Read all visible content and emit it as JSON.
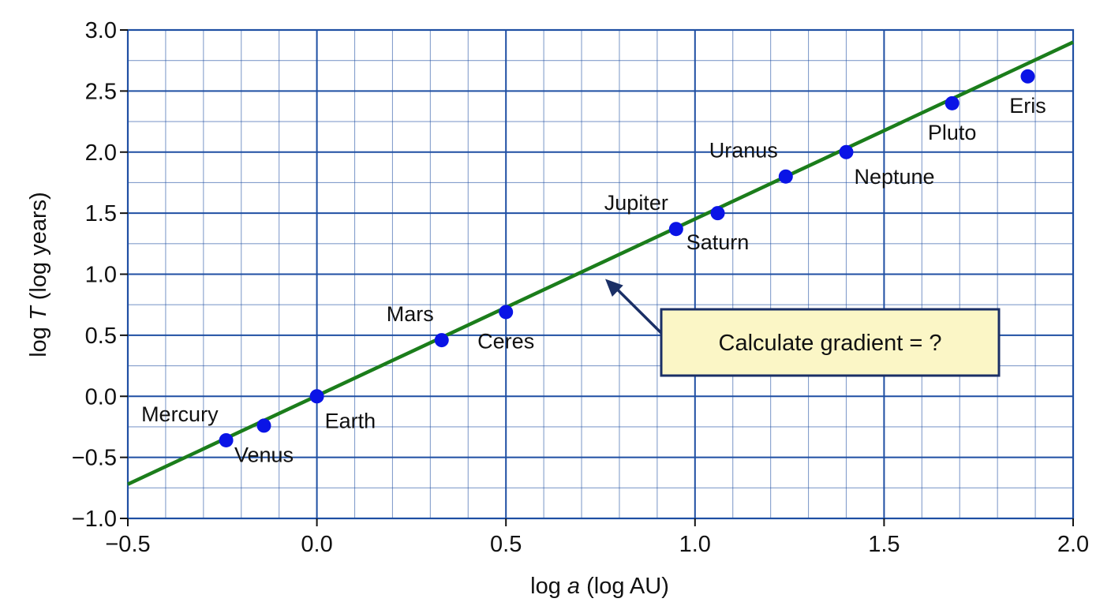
{
  "chart_data": {
    "type": "scatter",
    "xlabel_prefix": "log ",
    "xlabel_var": "a",
    "xlabel_suffix": " (log AU)",
    "ylabel_prefix": "log ",
    "ylabel_var": "T",
    "ylabel_suffix": " (log years)",
    "xlim": [
      -0.5,
      2.0
    ],
    "ylim": [
      -1.0,
      3.0
    ],
    "grid": true,
    "x_ticks": [
      -0.5,
      0.0,
      0.5,
      1.0,
      1.5,
      2.0
    ],
    "x_tick_labels": [
      "−0.5",
      "0.0",
      "0.5",
      "1.0",
      "1.5",
      "2.0"
    ],
    "y_ticks": [
      -1.0,
      -0.5,
      0.0,
      0.5,
      1.0,
      1.5,
      2.0,
      2.5,
      3.0
    ],
    "y_tick_labels": [
      "−1.0",
      "−0.5",
      "0.0",
      "0.5",
      "1.0",
      "1.5",
      "2.0",
      "2.5",
      "3.0"
    ],
    "points": [
      {
        "name": "Mercury",
        "x": -0.24,
        "y": -0.36,
        "label_pos": "above-left"
      },
      {
        "name": "Venus",
        "x": -0.14,
        "y": -0.24,
        "label_pos": "below"
      },
      {
        "name": "Earth",
        "x": 0.0,
        "y": 0.0,
        "label_pos": "below-right"
      },
      {
        "name": "Mars",
        "x": 0.33,
        "y": 0.46,
        "label_pos": "above-left"
      },
      {
        "name": "Ceres",
        "x": 0.5,
        "y": 0.69,
        "label_pos": "below"
      },
      {
        "name": "Jupiter",
        "x": 0.95,
        "y": 1.37,
        "label_pos": "above-left"
      },
      {
        "name": "Saturn",
        "x": 1.06,
        "y": 1.5,
        "label_pos": "below"
      },
      {
        "name": "Uranus",
        "x": 1.24,
        "y": 1.8,
        "label_pos": "above-left"
      },
      {
        "name": "Neptune",
        "x": 1.4,
        "y": 2.0,
        "label_pos": "below-right"
      },
      {
        "name": "Pluto",
        "x": 1.68,
        "y": 2.4,
        "label_pos": "below"
      },
      {
        "name": "Eris",
        "x": 1.88,
        "y": 2.62,
        "label_pos": "below"
      }
    ],
    "fit_line": {
      "x1": -0.5,
      "y1": -0.72,
      "x2": 2.0,
      "y2": 2.9
    },
    "annotation": {
      "text": "Calculate gradient = ?",
      "target_x": 0.75,
      "target_y": 1.0
    },
    "colors": {
      "grid": "#1f4fa3",
      "point": "#0a14e6",
      "line": "#1b7d1b",
      "annotation_fill": "#fbf6c6",
      "annotation_border": "#1a2f66",
      "arrow": "#1a2f66"
    }
  }
}
